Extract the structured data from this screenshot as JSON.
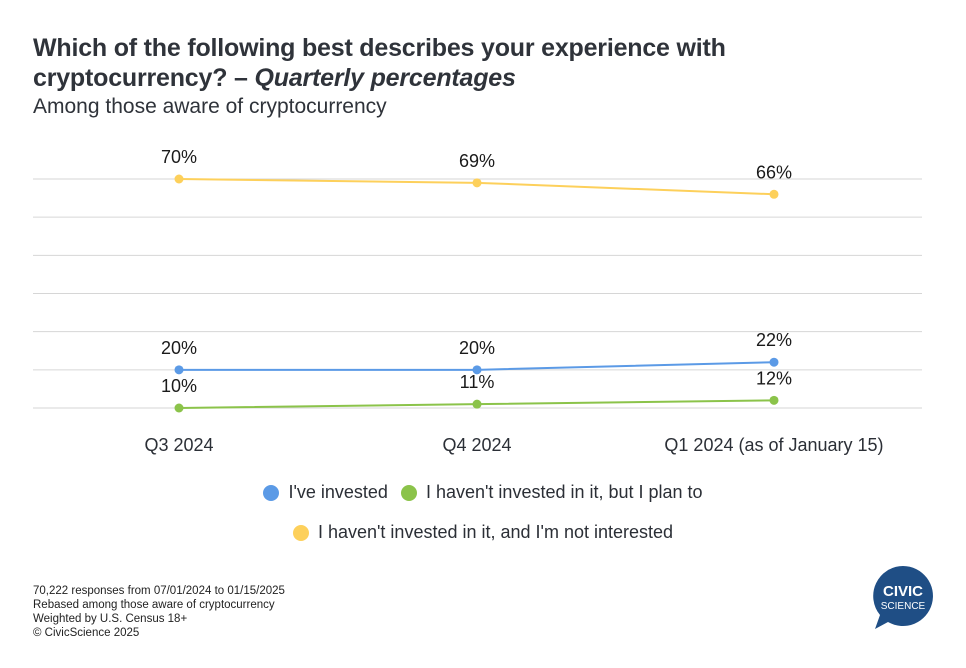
{
  "header": {
    "title_main": "Which of the following best describes your experience with cryptocurrency? – ",
    "title_italic": "Quarterly percentages",
    "subtitle": "Among those aware of cryptocurrency"
  },
  "chart_data": {
    "type": "line",
    "title": "Which of the following best describes your experience with cryptocurrency? – Quarterly percentages",
    "subtitle": "Among those aware of cryptocurrency",
    "categories": [
      "Q3 2024",
      "Q4 2024",
      "Q1 2024 (as of January 15)"
    ],
    "series": [
      {
        "name": "I've invested",
        "color": "#5b9ae6",
        "values": [
          20,
          20,
          22
        ],
        "labels": [
          "20%",
          "20%",
          "22%"
        ]
      },
      {
        "name": "I haven't invested in it, but I plan to",
        "color": "#8bc34a",
        "values": [
          10,
          11,
          12
        ],
        "labels": [
          "10%",
          "11%",
          "12%"
        ]
      },
      {
        "name": "I haven't invested in it, and I'm not interested",
        "color": "#fdd05b",
        "values": [
          70,
          69,
          66
        ],
        "labels": [
          "70%",
          "69%",
          "66%"
        ]
      }
    ],
    "gridlines_at": [
      10,
      20,
      30,
      40,
      50,
      60,
      70
    ],
    "ylim": [
      10,
      70
    ],
    "grid": true,
    "y_axis_labels_shown": false,
    "xlabel": "",
    "ylabel": "",
    "legend_position": "bottom-center"
  },
  "footnotes": [
    "70,222 responses from 07/01/2024 to 01/15/2025",
    "Rebased among those aware of cryptocurrency",
    "Weighted by U.S. Census 18+",
    "© CivicScience 2025"
  ],
  "logo": {
    "line1": "CIVIC",
    "line2": "SCIENCE",
    "color": "#1f4e85"
  }
}
